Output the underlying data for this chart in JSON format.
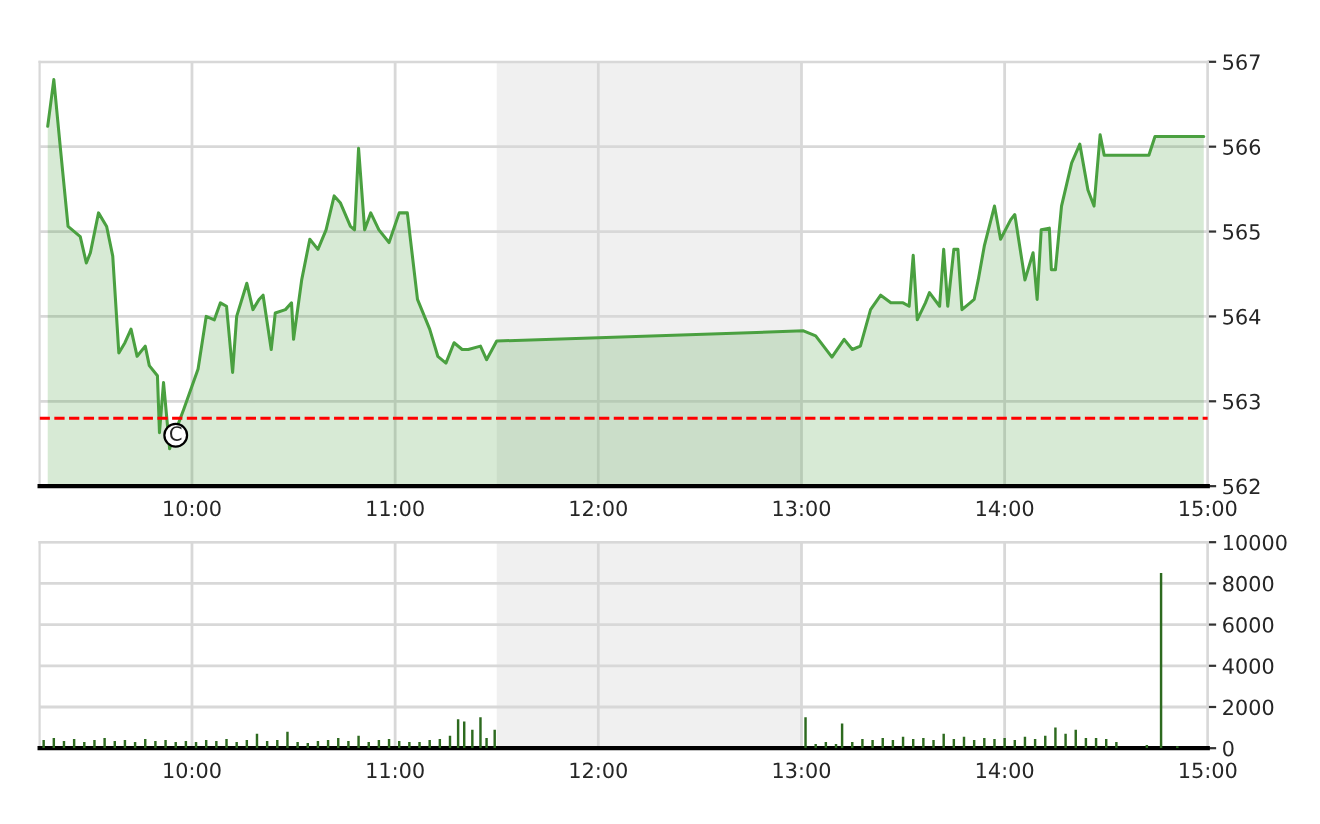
{
  "chart_data": [
    {
      "type": "area",
      "color": "#4aa040",
      "x": [
        9.29,
        9.32,
        9.35,
        9.39,
        9.45,
        9.48,
        9.5,
        9.54,
        9.58,
        9.61,
        9.64,
        9.67,
        9.7,
        9.73,
        9.77,
        9.79,
        9.83,
        9.84,
        9.86,
        9.89,
        9.91,
        9.96,
        10.03,
        10.07,
        10.11,
        10.14,
        10.17,
        10.2,
        10.22,
        10.27,
        10.3,
        10.33,
        10.35,
        10.39,
        10.41,
        10.46,
        10.49,
        10.5,
        10.54,
        10.58,
        10.62,
        10.66,
        10.7,
        10.73,
        10.78,
        10.8,
        10.82,
        10.85,
        10.88,
        10.92,
        10.97,
        11.02,
        11.06,
        11.11,
        11.17,
        11.21,
        11.25,
        11.29,
        11.33,
        11.36,
        11.42,
        11.45,
        11.5,
        13.01,
        13.07,
        13.15,
        13.21,
        13.25,
        13.29,
        13.34,
        13.39,
        13.44,
        13.5,
        13.53,
        13.55,
        13.57,
        13.61,
        13.63,
        13.68,
        13.7,
        13.72,
        13.75,
        13.77,
        13.79,
        13.83,
        13.85,
        13.87,
        13.9,
        13.95,
        13.98,
        14.03,
        14.05,
        14.1,
        14.14,
        14.16,
        14.18,
        14.22,
        14.23,
        14.25,
        14.28,
        14.33,
        14.37,
        14.41,
        14.44,
        14.47,
        14.49,
        14.71,
        14.74,
        14.98
      ],
      "values": [
        566.24,
        566.79,
        566.04,
        565.06,
        564.94,
        564.63,
        564.75,
        565.22,
        565.06,
        564.71,
        563.57,
        563.69,
        563.85,
        563.53,
        563.65,
        563.42,
        563.3,
        562.63,
        563.22,
        562.44,
        562.59,
        562.91,
        563.38,
        564.0,
        563.96,
        564.16,
        564.12,
        563.34,
        564.0,
        564.39,
        564.08,
        564.2,
        564.25,
        563.61,
        564.04,
        564.08,
        564.16,
        563.73,
        564.43,
        564.91,
        564.79,
        565.02,
        565.42,
        565.34,
        565.06,
        565.02,
        565.98,
        565.02,
        565.22,
        565.02,
        564.87,
        565.22,
        565.22,
        564.2,
        563.85,
        563.53,
        563.45,
        563.69,
        563.61,
        563.61,
        563.65,
        563.49,
        563.71,
        563.83,
        563.77,
        563.52,
        563.73,
        563.61,
        563.65,
        564.08,
        564.25,
        564.16,
        564.16,
        564.12,
        564.72,
        563.96,
        564.16,
        564.28,
        564.12,
        564.79,
        564.12,
        564.79,
        564.79,
        564.08,
        564.16,
        564.2,
        564.43,
        564.83,
        565.3,
        564.91,
        565.14,
        565.2,
        564.43,
        564.75,
        564.2,
        565.02,
        565.04,
        564.55,
        564.55,
        565.3,
        565.81,
        566.03,
        565.49,
        565.3,
        566.14,
        565.9,
        565.9,
        566.12,
        566.12
      ],
      "xlim": [
        9.25,
        15
      ],
      "ylim": [
        562,
        567
      ],
      "yticks": [
        562,
        563,
        564,
        565,
        566,
        567
      ],
      "xticks": [
        {
          "value": 10,
          "label": "10:00"
        },
        {
          "value": 11,
          "label": "11:00"
        },
        {
          "value": 12,
          "label": "12:00"
        },
        {
          "value": 13,
          "label": "13:00"
        },
        {
          "value": 14,
          "label": "14:00"
        },
        {
          "value": 15,
          "label": "15:00"
        }
      ],
      "grid": true,
      "ref_lines": [
        {
          "axis": "y",
          "value": 562.8,
          "color": "#ff0000",
          "line_style": "dashed"
        }
      ],
      "bands": [
        {
          "axis": "x",
          "from": 11.5,
          "to": 13,
          "color": "#f0f0f0"
        }
      ],
      "annotations": [
        {
          "text": "C",
          "x": 9.92,
          "y": 562.6
        }
      ]
    },
    {
      "type": "bar",
      "color": "#2d6a1f",
      "x": [
        9.27,
        9.32,
        9.37,
        9.42,
        9.47,
        9.52,
        9.57,
        9.62,
        9.67,
        9.72,
        9.77,
        9.82,
        9.87,
        9.92,
        9.97,
        10.02,
        10.07,
        10.12,
        10.17,
        10.22,
        10.27,
        10.32,
        10.37,
        10.42,
        10.47,
        10.52,
        10.57,
        10.62,
        10.67,
        10.72,
        10.77,
        10.82,
        10.87,
        10.92,
        10.97,
        11.02,
        11.07,
        11.12,
        11.17,
        11.22,
        11.27,
        11.31,
        11.34,
        11.38,
        11.42,
        11.45,
        11.49,
        13.02,
        13.07,
        13.12,
        13.17,
        13.2,
        13.25,
        13.3,
        13.35,
        13.4,
        13.45,
        13.5,
        13.55,
        13.6,
        13.65,
        13.7,
        13.75,
        13.8,
        13.85,
        13.9,
        13.95,
        14.0,
        14.05,
        14.1,
        14.15,
        14.2,
        14.25,
        14.3,
        14.35,
        14.4,
        14.45,
        14.5,
        14.55,
        14.7,
        14.77,
        14.85
      ],
      "values": [
        400,
        500,
        350,
        450,
        300,
        400,
        500,
        350,
        400,
        300,
        450,
        350,
        400,
        300,
        350,
        300,
        400,
        350,
        450,
        300,
        400,
        700,
        350,
        400,
        800,
        300,
        250,
        350,
        400,
        500,
        350,
        600,
        300,
        400,
        450,
        350,
        300,
        300,
        400,
        450,
        600,
        1400,
        1300,
        900,
        1500,
        500,
        900,
        1500,
        200,
        300,
        200,
        1200,
        300,
        450,
        400,
        500,
        400,
        550,
        450,
        500,
        400,
        700,
        450,
        550,
        400,
        500,
        450,
        500,
        400,
        550,
        450,
        600,
        1000,
        700,
        900,
        500,
        500,
        450,
        300,
        150,
        8500,
        100
      ],
      "xlim": [
        9.25,
        15
      ],
      "ylim": [
        0,
        10000
      ],
      "yticks": [
        0,
        2000,
        4000,
        6000,
        8000,
        10000
      ],
      "xticks": [
        {
          "value": 10,
          "label": "10:00"
        },
        {
          "value": 11,
          "label": "11:00"
        },
        {
          "value": 12,
          "label": "12:00"
        },
        {
          "value": 13,
          "label": "13:00"
        },
        {
          "value": 14,
          "label": "14:00"
        },
        {
          "value": 15,
          "label": "15:00"
        }
      ],
      "grid": true,
      "bands": [
        {
          "axis": "x",
          "from": 11.5,
          "to": 13,
          "color": "#f0f0f0"
        }
      ]
    }
  ]
}
